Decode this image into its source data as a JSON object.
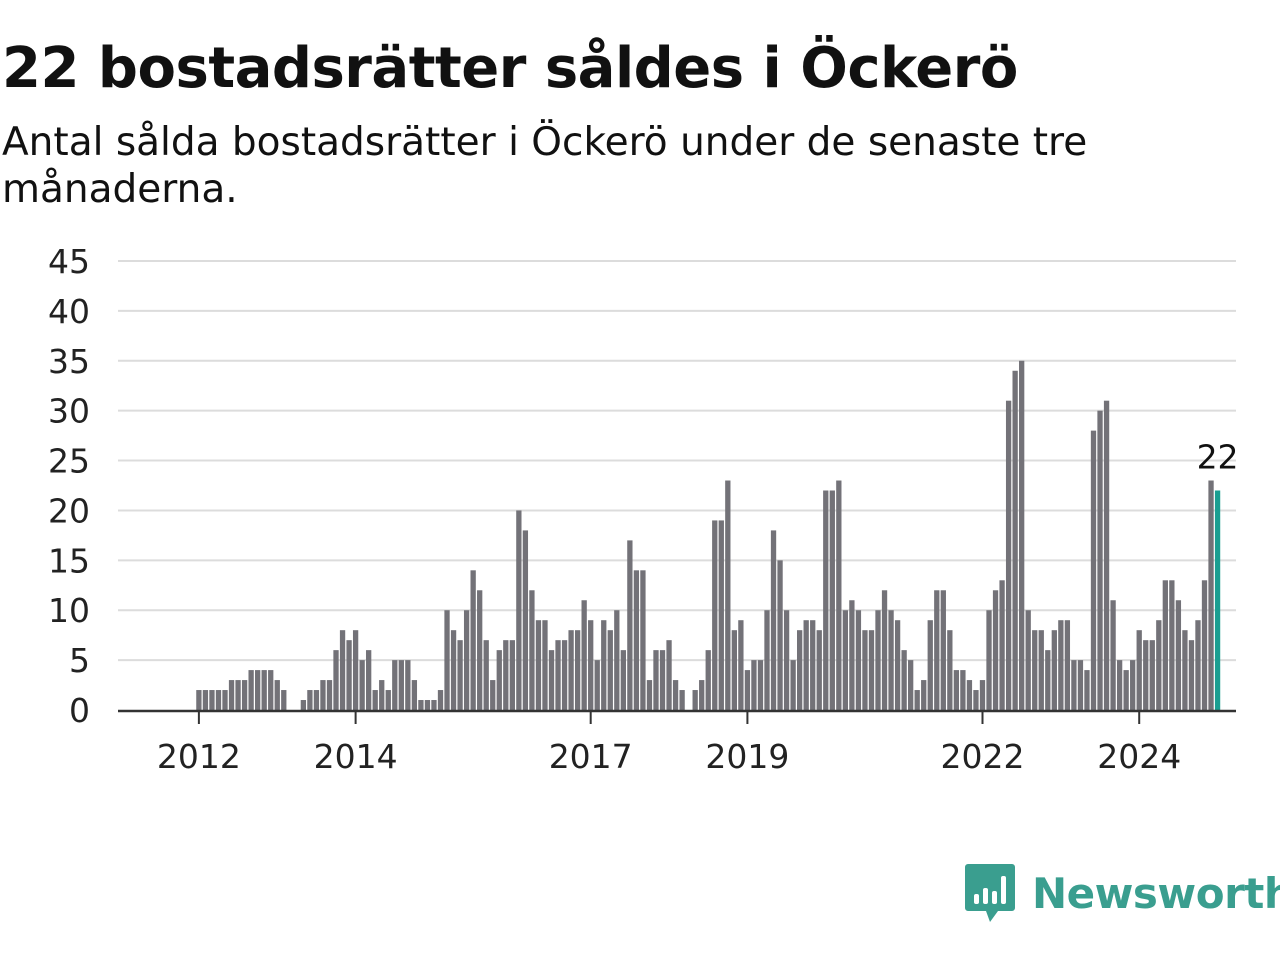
{
  "title": "22 bostadsrätter såldes i Öckerö",
  "subtitle": "Antal sålda bostadsrätter i Öckerö under de senaste tre månaderna.",
  "brand": {
    "name": "Newsworthy",
    "color": "#3a9e8f",
    "icon": "bar-chart-icon"
  },
  "chart_data": {
    "type": "bar",
    "title": "22 bostadsrätter såldes i Öckerö",
    "subtitle": "Antal sålda bostadsrätter i Öckerö under de senaste tre månaderna.",
    "xlabel": "",
    "ylabel": "",
    "ylim": [
      0,
      45
    ],
    "yticks": [
      0,
      5,
      10,
      15,
      20,
      25,
      30,
      35,
      40,
      45
    ],
    "xticks": [
      "2012",
      "2014",
      "2017",
      "2019",
      "2022",
      "2024"
    ],
    "xtick_bar_index": [
      8,
      32,
      68,
      92,
      128,
      152
    ],
    "grid": true,
    "bar_color": "#737278",
    "highlight_color": "#1a9e91",
    "highlight_label": "22",
    "values": [
      0,
      0,
      0,
      0,
      0,
      0,
      0,
      0,
      2,
      2,
      2,
      2,
      2,
      3,
      3,
      3,
      4,
      4,
      4,
      4,
      3,
      2,
      0,
      0,
      1,
      2,
      2,
      3,
      3,
      6,
      8,
      7,
      8,
      5,
      6,
      2,
      3,
      2,
      5,
      5,
      5,
      3,
      1,
      1,
      1,
      2,
      10,
      8,
      7,
      10,
      14,
      12,
      7,
      3,
      6,
      7,
      7,
      20,
      18,
      12,
      9,
      9,
      6,
      7,
      7,
      8,
      8,
      11,
      9,
      5,
      9,
      8,
      10,
      6,
      17,
      14,
      14,
      3,
      6,
      6,
      7,
      3,
      2,
      0,
      2,
      3,
      6,
      19,
      19,
      23,
      8,
      9,
      4,
      5,
      5,
      10,
      18,
      15,
      10,
      5,
      8,
      9,
      9,
      8,
      22,
      22,
      23,
      10,
      11,
      10,
      8,
      8,
      10,
      12,
      10,
      9,
      6,
      5,
      2,
      3,
      9,
      12,
      12,
      8,
      4,
      4,
      3,
      2,
      3,
      10,
      12,
      13,
      31,
      34,
      35,
      10,
      8,
      8,
      6,
      8,
      9,
      9,
      5,
      5,
      4,
      28,
      30,
      31,
      11,
      5,
      4,
      5,
      8,
      7,
      7,
      9,
      13,
      13,
      11,
      8,
      7,
      9,
      13,
      23,
      22
    ]
  }
}
